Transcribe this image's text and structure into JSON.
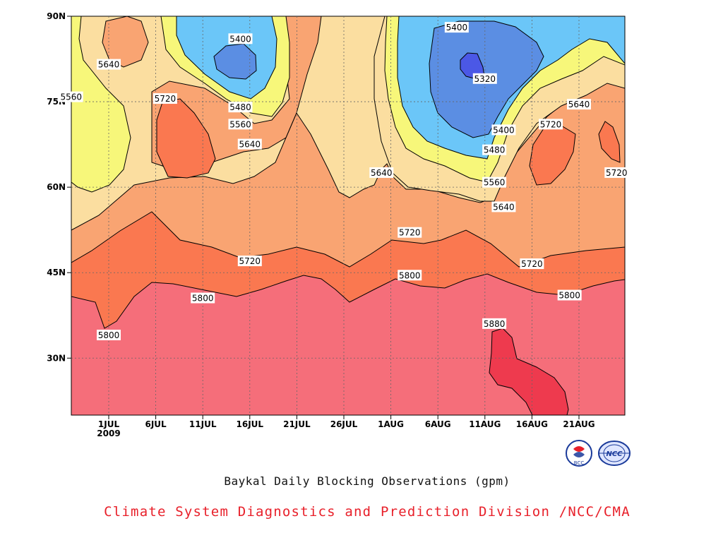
{
  "chart_data": {
    "type": "heatmap",
    "subtype": "filled-contour",
    "title": "Baykal Daily Blocking Observations (gpm)",
    "xlabel": "",
    "ylabel": "",
    "x_ticks": [
      "1JUL",
      "6JUL",
      "11JUL",
      "16JUL",
      "21JUL",
      "26JUL",
      "1AUG",
      "6AUG",
      "11AUG",
      "16AUG",
      "21AUG"
    ],
    "x_tick_sub": "2009",
    "y_ticks": [
      "30N",
      "45N",
      "60N",
      "75N",
      "90N"
    ],
    "ylim": [
      20,
      90
    ],
    "contour_levels": [
      5320,
      5400,
      5480,
      5560,
      5640,
      5720,
      5800,
      5880
    ],
    "level_colors": {
      "below_5400": "#4b58e6",
      "5400_5480": "#5b8ee3",
      "5480_5560": "#6bc6f8",
      "5560_5640": "#f7f77a",
      "5640_5720": "#fbdea0",
      "5720_5800": "#f9a472",
      "5800_5880": "#fa7850",
      "above_5880": "#f56e7a",
      "core_5880": "#ee3a4e"
    },
    "contour_labels": [
      {
        "text": "5400",
        "date": "15JUL",
        "lat": 86
      },
      {
        "text": "5480",
        "date": "15JUL",
        "lat": 74
      },
      {
        "text": "5560",
        "date": "15JUL",
        "lat": 71
      },
      {
        "text": "5640",
        "date": "16JUL",
        "lat": 67.5
      },
      {
        "text": "5640",
        "date": "1JUL",
        "lat": 81.5
      },
      {
        "text": "5560",
        "date": "27JUN",
        "lat": 75.8
      },
      {
        "text": "5720",
        "date": "7JUL",
        "lat": 75.5
      },
      {
        "text": "5720",
        "date": "16JUL",
        "lat": 47
      },
      {
        "text": "5800",
        "date": "11JUL",
        "lat": 40.5
      },
      {
        "text": "5800",
        "date": "1JUL",
        "lat": 34
      },
      {
        "text": "5400",
        "date": "7AUG",
        "lat": 88
      },
      {
        "text": "5320",
        "date": "10AUG",
        "lat": 79
      },
      {
        "text": "5400",
        "date": "12AUG",
        "lat": 70
      },
      {
        "text": "5480",
        "date": "11AUG",
        "lat": 66.5
      },
      {
        "text": "5560",
        "date": "11AUG",
        "lat": 60.8
      },
      {
        "text": "5640",
        "date": "12AUG",
        "lat": 56.5
      },
      {
        "text": "5640",
        "date": "30JUL",
        "lat": 62.5
      },
      {
        "text": "5720",
        "date": "2AUG",
        "lat": 52
      },
      {
        "text": "5800",
        "date": "2AUG",
        "lat": 44.5
      },
      {
        "text": "5720",
        "date": "15AUG",
        "lat": 46.5
      },
      {
        "text": "5800",
        "date": "19AUG",
        "lat": 41
      },
      {
        "text": "5880",
        "date": "11AUG",
        "lat": 36
      },
      {
        "text": "5640",
        "date": "20AUG",
        "lat": 74.5
      },
      {
        "text": "5720",
        "date": "17AUG",
        "lat": 71
      },
      {
        "text": "5720",
        "date": "24AUG",
        "lat": 62.5
      }
    ]
  },
  "footer": {
    "title": "Baykal Daily Blocking Observations (gpm)",
    "credit": "Climate System Diagnostics and Prediction Division /NCC/CMA",
    "credit_color": "#e8202a",
    "logos": [
      {
        "name": "bcc-logo",
        "text": "BCC"
      },
      {
        "name": "ncc-logo",
        "text": "NCC"
      }
    ]
  }
}
